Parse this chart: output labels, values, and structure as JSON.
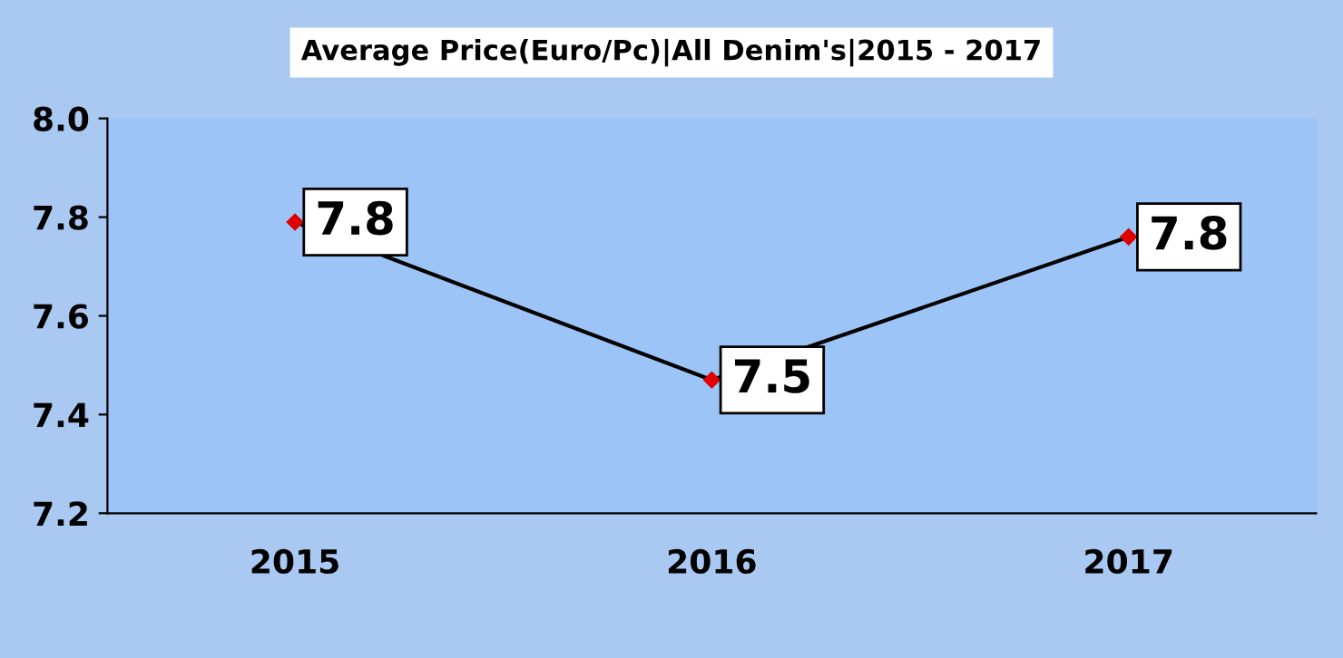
{
  "chart_data": {
    "type": "line",
    "title": "Average Price(Euro/Pc)|All Denim's|2015 - 2017",
    "categories": [
      "2015",
      "2016",
      "2017"
    ],
    "series": [
      {
        "color": "#000000",
        "values": [
          7.79,
          7.47,
          7.76
        ],
        "value_labels": [
          "7.8",
          "7.5",
          "7.8"
        ]
      }
    ],
    "ylim": [
      7.2,
      8.0
    ],
    "yticks": [
      7.2,
      7.4,
      7.6,
      7.8,
      {
        "value": 8,
        "label": "8.0"
      }
    ],
    "grid": false,
    "legend": false,
    "marker": "diamond",
    "line_style": "solid"
  }
}
